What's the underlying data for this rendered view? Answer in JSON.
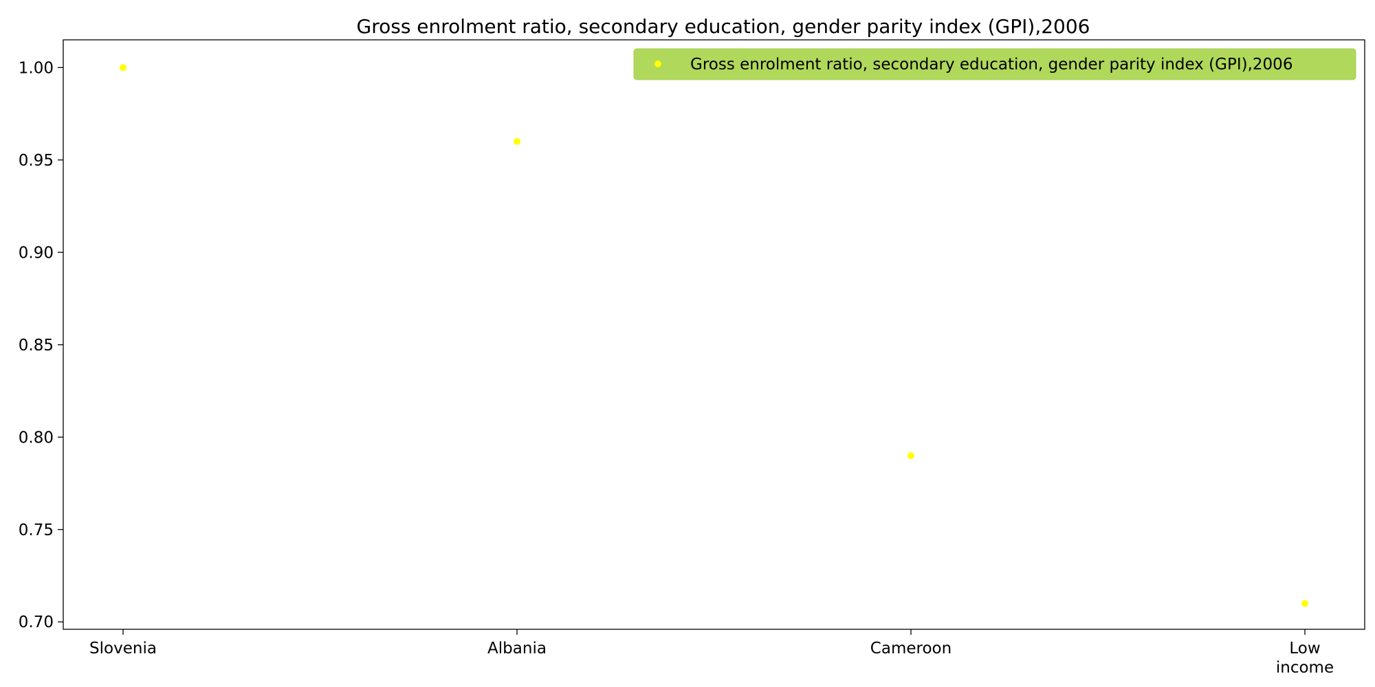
{
  "chart_data": {
    "type": "scatter",
    "title": "Gross enrolment ratio, secondary education, gender parity index (GPI),2006",
    "xlabel": "",
    "ylabel": "",
    "categories": [
      "Slovenia",
      "Albania",
      "Cameroon",
      "Low income"
    ],
    "series": [
      {
        "name": "Gross enrolment ratio, secondary education, gender parity index (GPI),2006",
        "values": [
          1.0,
          0.96,
          0.79,
          0.71
        ],
        "color": "#ffff00"
      }
    ],
    "ylim": [
      0.696,
      1.015
    ],
    "yticks": [
      "0.70",
      "0.75",
      "0.80",
      "0.85",
      "0.90",
      "0.95",
      "1.00"
    ],
    "grid": false,
    "legend": {
      "placement": "top-right",
      "background": "#b0d85a"
    }
  }
}
